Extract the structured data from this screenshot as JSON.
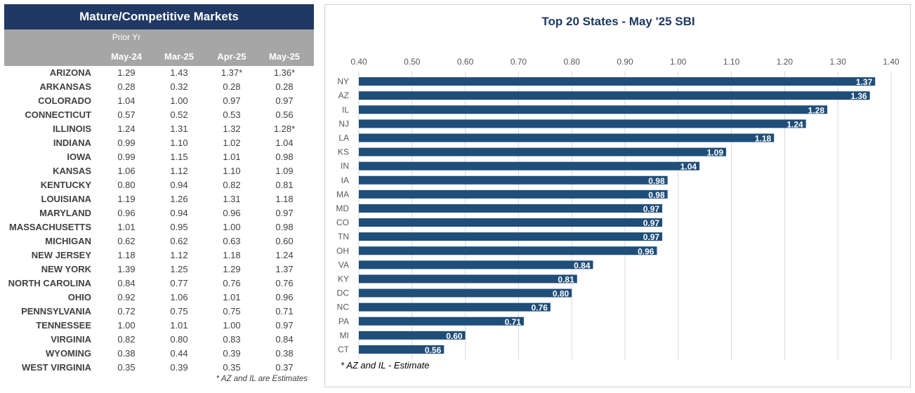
{
  "table": {
    "title": "Mature/Competitive Markets",
    "prior_year_label": "Prior Yr",
    "columns": [
      "May-24",
      "Mar-25",
      "Apr-25",
      "May-25"
    ],
    "rows": [
      {
        "state": "ARIZONA",
        "values": [
          "1.29",
          "1.43",
          "1.37*",
          "1.36*"
        ]
      },
      {
        "state": "ARKANSAS",
        "values": [
          "0.28",
          "0.32",
          "0.28",
          "0.28"
        ]
      },
      {
        "state": "COLORADO",
        "values": [
          "1.04",
          "1.00",
          "0.97",
          "0.97"
        ]
      },
      {
        "state": "CONNECTICUT",
        "values": [
          "0.57",
          "0.52",
          "0.53",
          "0.56"
        ]
      },
      {
        "state": "ILLINOIS",
        "values": [
          "1.24",
          "1.31",
          "1.32",
          "1.28*"
        ]
      },
      {
        "state": "INDIANA",
        "values": [
          "0.99",
          "1.10",
          "1.02",
          "1.04"
        ]
      },
      {
        "state": "IOWA",
        "values": [
          "0.99",
          "1.15",
          "1.01",
          "0.98"
        ]
      },
      {
        "state": "KANSAS",
        "values": [
          "1.06",
          "1.12",
          "1.10",
          "1.09"
        ]
      },
      {
        "state": "KENTUCKY",
        "values": [
          "0.80",
          "0.94",
          "0.82",
          "0.81"
        ]
      },
      {
        "state": "LOUISIANA",
        "values": [
          "1.19",
          "1.26",
          "1.31",
          "1.18"
        ]
      },
      {
        "state": "MARYLAND",
        "values": [
          "0.96",
          "0.94",
          "0.96",
          "0.97"
        ]
      },
      {
        "state": "MASSACHUSETTS",
        "values": [
          "1.01",
          "0.95",
          "1.00",
          "0.98"
        ]
      },
      {
        "state": "MICHIGAN",
        "values": [
          "0.62",
          "0.62",
          "0.63",
          "0.60"
        ]
      },
      {
        "state": "NEW JERSEY",
        "values": [
          "1.18",
          "1.12",
          "1.18",
          "1.24"
        ]
      },
      {
        "state": "NEW YORK",
        "values": [
          "1.39",
          "1.25",
          "1.29",
          "1.37"
        ]
      },
      {
        "state": "NORTH CAROLINA",
        "values": [
          "0.84",
          "0.77",
          "0.76",
          "0.76"
        ]
      },
      {
        "state": "OHIO",
        "values": [
          "0.92",
          "1.06",
          "1.01",
          "0.96"
        ]
      },
      {
        "state": "PENNSYLVANIA",
        "values": [
          "0.72",
          "0.75",
          "0.75",
          "0.71"
        ]
      },
      {
        "state": "TENNESSEE",
        "values": [
          "1.00",
          "1.01",
          "1.00",
          "0.97"
        ]
      },
      {
        "state": "VIRGINIA",
        "values": [
          "0.82",
          "0.80",
          "0.83",
          "0.84"
        ]
      },
      {
        "state": "WYOMING",
        "values": [
          "0.38",
          "0.44",
          "0.39",
          "0.38"
        ]
      },
      {
        "state": "WEST VIRGINIA",
        "values": [
          "0.35",
          "0.39",
          "0.35",
          "0.37"
        ]
      }
    ],
    "footnote": "* AZ and IL are Estimates"
  },
  "chart_data": {
    "type": "bar",
    "orientation": "horizontal",
    "title": "Top 20 States -  May '25 SBI",
    "categories": [
      "NY",
      "AZ",
      "IL",
      "NJ",
      "LA",
      "KS",
      "IN",
      "IA",
      "MA",
      "MD",
      "CO",
      "TN",
      "OH",
      "VA",
      "KY",
      "DC",
      "NC",
      "PA",
      "MI",
      "CT"
    ],
    "values": [
      1.37,
      1.36,
      1.28,
      1.24,
      1.18,
      1.09,
      1.04,
      0.98,
      0.98,
      0.97,
      0.97,
      0.97,
      0.96,
      0.84,
      0.81,
      0.8,
      0.76,
      0.71,
      0.6,
      0.56
    ],
    "labels": [
      "1.37",
      "1.36",
      "1.28",
      "1.24",
      "1.18",
      "1.09",
      "1.04",
      "0.98",
      "0.98",
      "0.97",
      "0.97",
      "0.97",
      "0.96",
      "0.84",
      "0.81",
      "0.80",
      "0.76",
      "0.71",
      "0.60",
      "0.56"
    ],
    "xlim": [
      0.4,
      1.4
    ],
    "ticks": [
      "0.40",
      "0.50",
      "0.60",
      "0.70",
      "0.80",
      "0.90",
      "1.00",
      "1.10",
      "1.20",
      "1.30",
      "1.40"
    ],
    "axis_position": "top",
    "grid": true,
    "footnote": "* AZ and IL - Estimate"
  },
  "colors": {
    "navy": "#1f3864",
    "bar": "#1f4e79",
    "header_gray": "#a6a6a6",
    "grid": "#d9d9d9",
    "text": "#404040"
  }
}
